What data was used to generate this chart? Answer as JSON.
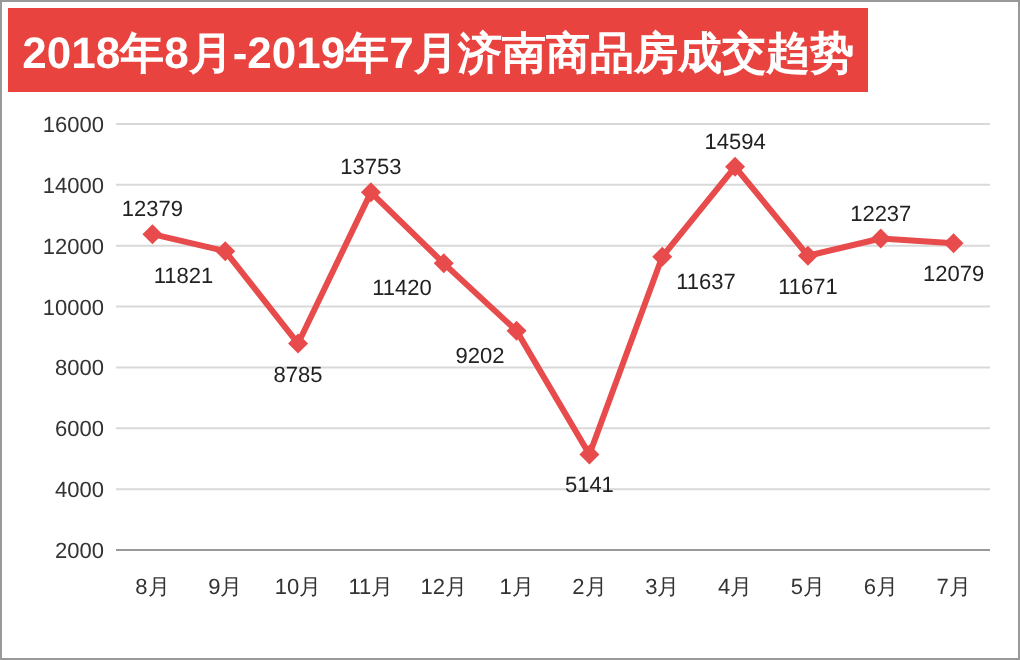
{
  "chart_data": {
    "type": "line",
    "title": "2018年8月-2019年7月济南商品房成交趋势",
    "categories": [
      "8月",
      "9月",
      "10月",
      "11月",
      "12月",
      "1月",
      "2月",
      "3月",
      "4月",
      "5月",
      "6月",
      "7月"
    ],
    "series": [
      {
        "color": "#e84b4b",
        "values": [
          12379,
          11821,
          8785,
          13753,
          11420,
          9202,
          5141,
          11637,
          14594,
          11671,
          12237,
          12079
        ]
      }
    ],
    "ylim": [
      2000,
      16000
    ],
    "yticks": [
      2000,
      4000,
      6000,
      8000,
      10000,
      12000,
      14000,
      16000
    ],
    "grid": "y",
    "marker": "diamond",
    "line_style": "solid",
    "data_labels": true
  }
}
